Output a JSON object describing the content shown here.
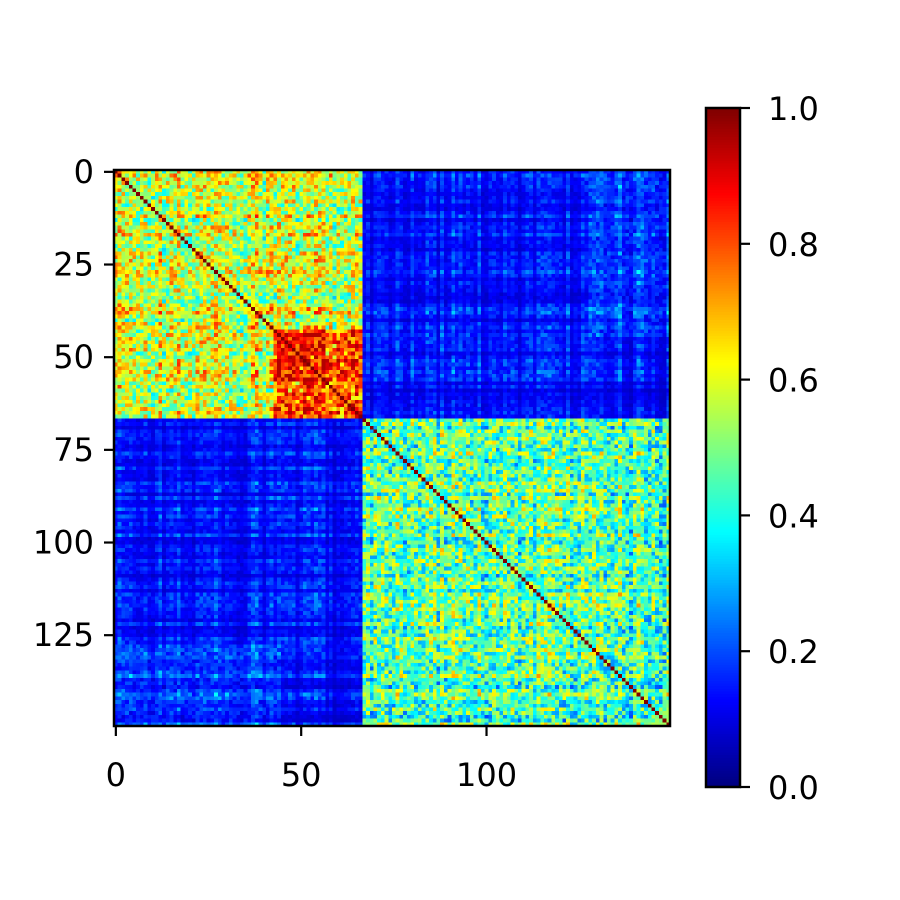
{
  "chart_data": {
    "type": "heatmap",
    "title": "",
    "xlabel": "",
    "ylabel": "",
    "n": 150,
    "colormap": "jet",
    "value_range": [
      0,
      1
    ],
    "diagonal_value": 1.0,
    "block_boundary": 67,
    "x_ticks": [
      {
        "value": 0,
        "label": "0"
      },
      {
        "value": 50,
        "label": "50"
      },
      {
        "value": 100,
        "label": "100"
      }
    ],
    "y_ticks": [
      {
        "value": 0,
        "label": "0"
      },
      {
        "value": 25,
        "label": "25"
      },
      {
        "value": 50,
        "label": "50"
      },
      {
        "value": 75,
        "label": "75"
      },
      {
        "value": 100,
        "label": "100"
      },
      {
        "value": 125,
        "label": "125"
      }
    ],
    "colorbar": {
      "ticks": [
        {
          "value": 0.0,
          "label": "0.0"
        },
        {
          "value": 0.2,
          "label": "0.2"
        },
        {
          "value": 0.4,
          "label": "0.4"
        },
        {
          "value": 0.6,
          "label": "0.6"
        },
        {
          "value": 0.8,
          "label": "0.8"
        },
        {
          "value": 1.0,
          "label": "1.0"
        }
      ]
    },
    "blocks": [
      {
        "rows": [
          0,
          66
        ],
        "cols": [
          0,
          66
        ],
        "mean_similarity": 0.55
      },
      {
        "rows": [
          67,
          149
        ],
        "cols": [
          67,
          149
        ],
        "mean_similarity": 0.45
      },
      {
        "rows": [
          0,
          66
        ],
        "cols": [
          67,
          149
        ],
        "mean_similarity": 0.15
      },
      {
        "rows": [
          67,
          149
        ],
        "cols": [
          0,
          66
        ],
        "mean_similarity": 0.15
      }
    ]
  }
}
